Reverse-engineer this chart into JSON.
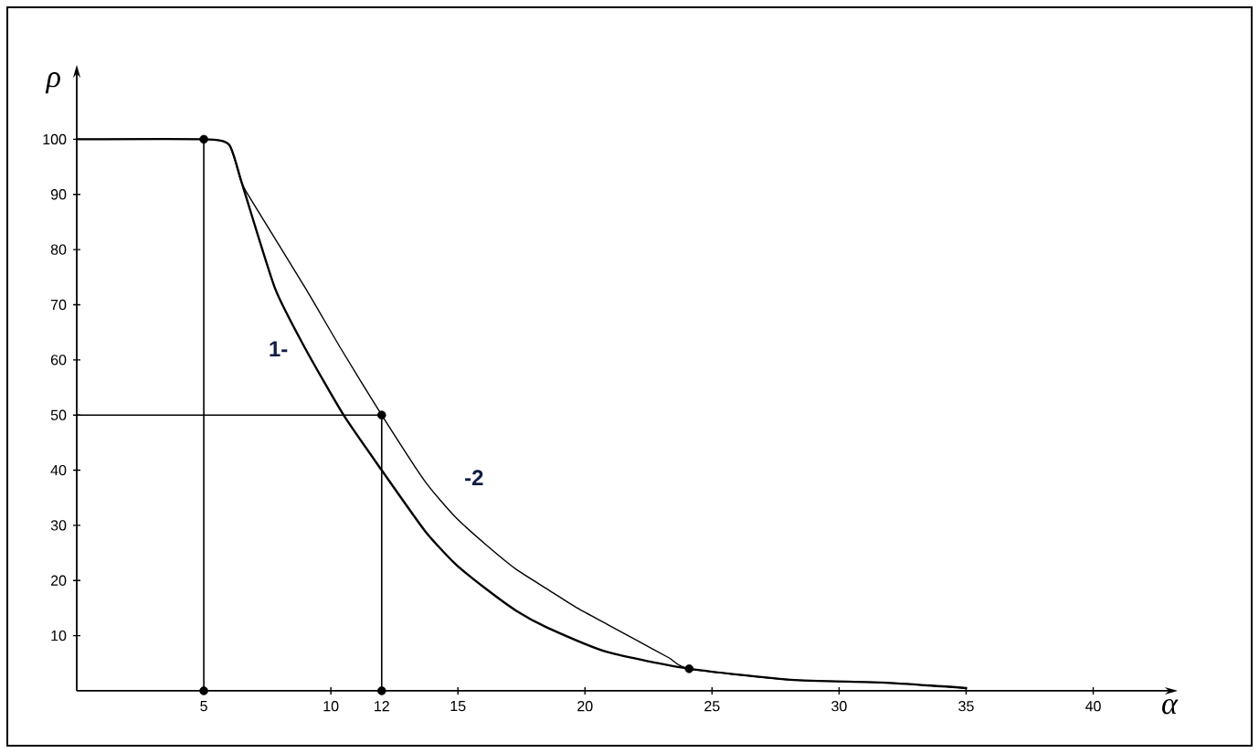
{
  "chart_data": {
    "type": "line",
    "xlabel": "α",
    "ylabel": "ρ",
    "xlim": [
      0,
      43
    ],
    "ylim": [
      0,
      112
    ],
    "xticks": [
      5,
      10,
      12,
      15,
      20,
      25,
      30,
      35,
      40
    ],
    "yticks": [
      10,
      20,
      30,
      40,
      50,
      60,
      70,
      80,
      90,
      100
    ],
    "marker": "none",
    "line_style": "solid",
    "series": [
      {
        "name": "1-",
        "color": "#000000",
        "x": [
          0,
          5,
          6,
          6.5,
          7.8,
          9,
          10.5,
          12,
          13.7,
          14.9,
          16.1,
          17.3,
          18.5,
          20.9,
          24.1,
          28.1,
          31.7,
          35
        ],
        "values": [
          100,
          100,
          99,
          92,
          73,
          62,
          50,
          40,
          29,
          23,
          18.5,
          14.5,
          11.5,
          7,
          4,
          2,
          1.5,
          0.5
        ]
      },
      {
        "name": "-2",
        "color": "#000000",
        "x": [
          0,
          5,
          6,
          6.5,
          7,
          9,
          10.4,
          12,
          13.7,
          14.9,
          16.1,
          17.3,
          18.5,
          19.7,
          20.9,
          22.1,
          23.3,
          24.1,
          28.1,
          31.7,
          35
        ],
        "values": [
          100,
          100,
          99,
          92,
          88,
          73,
          62,
          50,
          38,
          31.5,
          26.5,
          22,
          18.5,
          15,
          12,
          9,
          6,
          4,
          2,
          1.5,
          0.5
        ]
      },
      {
        "type": "scatter",
        "color": "#000000",
        "marker": "circle",
        "x": [
          5,
          12,
          24.1,
          5,
          12
        ],
        "values": [
          100,
          50,
          4,
          0,
          0
        ]
      }
    ],
    "ref_lines": [
      {
        "axis": "x",
        "value": 5
      },
      {
        "axis": "x",
        "value": 12
      },
      {
        "axis": "y",
        "value": 50
      }
    ]
  }
}
